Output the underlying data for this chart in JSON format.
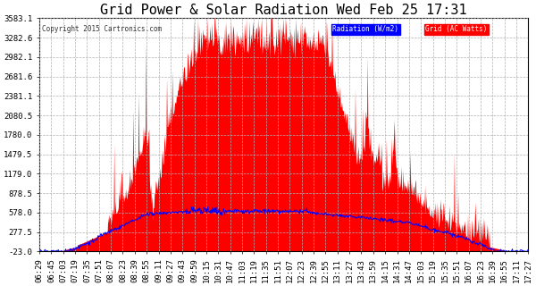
{
  "title": "Grid Power & Solar Radiation Wed Feb 25 17:31",
  "copyright": "Copyright 2015 Cartronics.com",
  "legend_radiation": "Radiation (W/m2)",
  "legend_grid": "Grid (AC Watts)",
  "yticks": [
    -23.0,
    277.5,
    578.0,
    878.5,
    1179.0,
    1479.5,
    1780.0,
    2080.5,
    2381.1,
    2681.6,
    2982.1,
    3282.6,
    3583.1
  ],
  "ymin": -23.0,
  "ymax": 3583.1,
  "background_color": "#ffffff",
  "plot_bg_color": "#ffffff",
  "grid_color": "#b0b0b0",
  "red_fill_color": "#ff0000",
  "blue_line_color": "#0000ff",
  "title_fontsize": 11,
  "tick_fontsize": 6.5,
  "xtick_labels": [
    "06:29",
    "06:45",
    "07:03",
    "07:19",
    "07:35",
    "07:51",
    "08:07",
    "08:23",
    "08:39",
    "08:55",
    "09:11",
    "09:27",
    "09:43",
    "09:59",
    "10:15",
    "10:31",
    "10:47",
    "11:03",
    "11:19",
    "11:35",
    "11:51",
    "12:07",
    "12:23",
    "12:39",
    "12:55",
    "13:11",
    "13:27",
    "13:43",
    "13:59",
    "14:15",
    "14:31",
    "14:47",
    "15:03",
    "15:19",
    "15:35",
    "15:51",
    "16:07",
    "16:23",
    "16:39",
    "16:55",
    "17:11",
    "17:27"
  ]
}
